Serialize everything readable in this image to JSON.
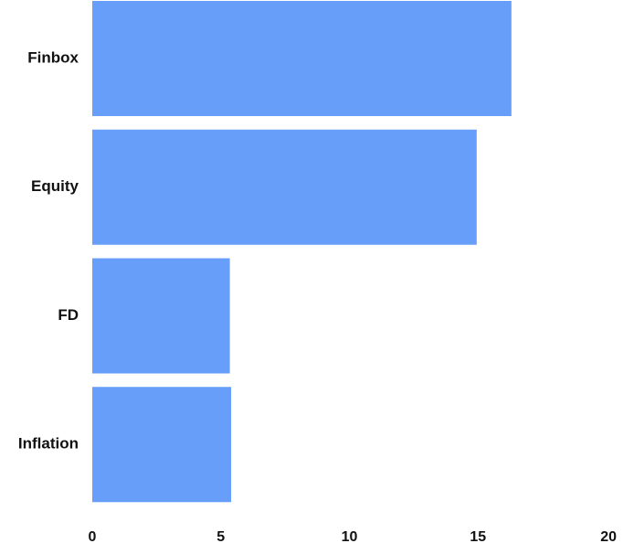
{
  "chart_data": {
    "type": "bar",
    "orientation": "horizontal",
    "categories": [
      "Finbox",
      "Equity",
      "FD",
      "Inflation"
    ],
    "values": [
      16.3,
      14.95,
      5.35,
      5.4
    ],
    "xlim": [
      0,
      20
    ],
    "xticks": [
      "0",
      "5",
      "10",
      "15",
      "20"
    ],
    "title": "",
    "xlabel": "",
    "ylabel": "",
    "grid": false,
    "bar_color": "#669ef9"
  }
}
